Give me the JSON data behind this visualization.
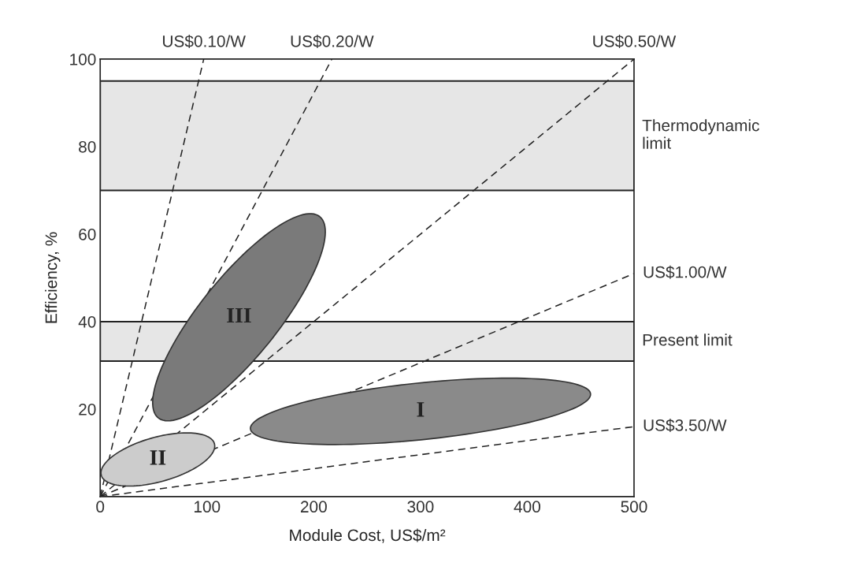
{
  "chart_data": {
    "type": "line",
    "xlabel": "Module Cost, US$/m²",
    "ylabel": "Efficiency, %",
    "xlim": [
      0,
      500
    ],
    "ylim": [
      0,
      100
    ],
    "xticks": [
      0,
      100,
      200,
      300,
      400,
      500
    ],
    "yticks": [
      20,
      40,
      60,
      80,
      100
    ],
    "grid": false,
    "line_style": "dashed",
    "marker": "none",
    "series": [
      {
        "name": "US$0.10/W",
        "color": "#222222",
        "x": [
          0,
          97
        ],
        "values": [
          0,
          100
        ]
      },
      {
        "name": "US$0.20/W",
        "color": "#222222",
        "x": [
          0,
          217
        ],
        "values": [
          0,
          100
        ]
      },
      {
        "name": "US$0.50/W",
        "color": "#222222",
        "x": [
          0,
          500
        ],
        "values": [
          0,
          100
        ]
      },
      {
        "name": "US$1.00/W",
        "color": "#222222",
        "x": [
          0,
          500
        ],
        "values": [
          0,
          51
        ]
      },
      {
        "name": "US$3.50/W",
        "color": "#222222",
        "x": [
          0,
          500
        ],
        "values": [
          0,
          16
        ]
      }
    ],
    "bands": [
      {
        "axis": "y",
        "from": 70,
        "to": 95,
        "label": "Thermodynamic\nlimit",
        "color": "#e6e6e6"
      },
      {
        "axis": "y",
        "from": 31,
        "to": 40,
        "label": "Present limit",
        "color": "#e6e6e6"
      }
    ],
    "annotations": [
      "III",
      "I",
      "II"
    ]
  }
}
